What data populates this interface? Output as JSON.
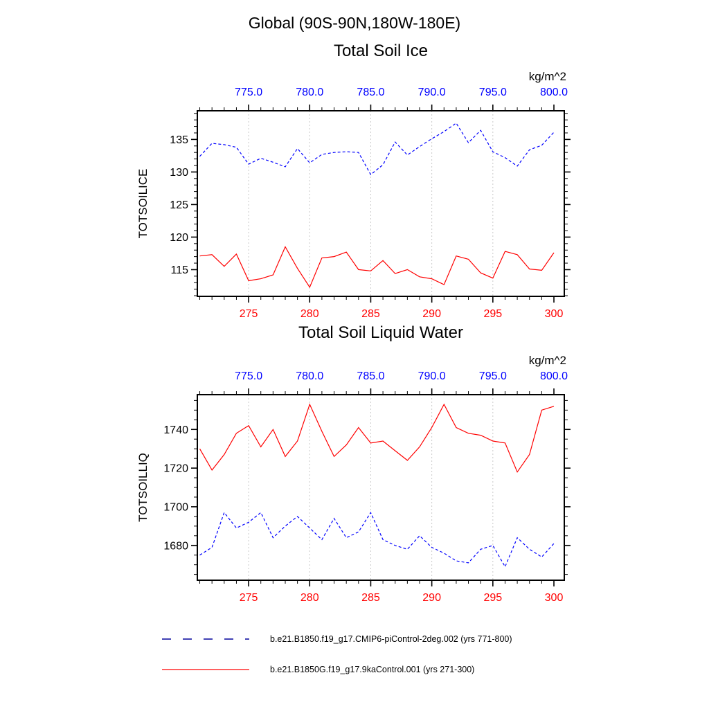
{
  "page": {
    "main_title": "Global (90S-90N,180W-180E)"
  },
  "chart_data": [
    {
      "type": "line",
      "title": "Total Soil Ice",
      "ylabel": "TOTSOILICE",
      "units": "kg/m^2",
      "xlim": [
        270.8,
        300.85
      ],
      "x_ticks": [
        275,
        280,
        285,
        290,
        295,
        300
      ],
      "x_top_labels": [
        "775.0",
        "780.0",
        "785.0",
        "790.0",
        "795.0",
        "800.0"
      ],
      "x_bottom_color": "#ff0000",
      "x_top_color": "#0000ff",
      "grid_x": [
        275,
        280,
        285,
        290,
        295
      ],
      "ylim": [
        110.9,
        139.4
      ],
      "y_ticks": [
        115,
        120,
        125,
        130,
        135
      ],
      "y_minor_step": 1,
      "x": [
        271,
        272,
        273,
        274,
        275,
        276,
        277,
        278,
        279,
        280,
        281,
        282,
        283,
        284,
        285,
        286,
        287,
        288,
        289,
        290,
        291,
        292,
        293,
        294,
        295,
        296,
        297,
        298,
        299,
        300
      ],
      "series": [
        {
          "name": "b.e21.B1850.f19_g17.CMIP6-piControl-2deg.002 (yrs 771-800)",
          "color": "#0000ff",
          "style": "dashed",
          "values": [
            132.4,
            134.4,
            134.2,
            133.8,
            131.2,
            132.1,
            131.5,
            130.8,
            133.6,
            131.4,
            132.7,
            133.0,
            133.1,
            133.0,
            129.6,
            131.1,
            134.6,
            132.6,
            133.9,
            135.1,
            136.2,
            137.5,
            134.5,
            136.4,
            133.1,
            132.2,
            130.9,
            133.4,
            134.1,
            136.1
          ]
        },
        {
          "name": "b.e21.B1850G.f19_g17.9kaControl.001 (yrs 271-300)",
          "color": "#ff0000",
          "style": "solid",
          "values": [
            117.1,
            117.3,
            115.5,
            117.4,
            113.3,
            113.6,
            114.2,
            118.5,
            115.2,
            112.3,
            116.8,
            117.0,
            117.7,
            115.0,
            114.8,
            116.4,
            114.4,
            115.0,
            113.9,
            113.6,
            112.7,
            117.1,
            116.6,
            114.5,
            113.7,
            117.8,
            117.3,
            115.1,
            114.9,
            117.6
          ]
        }
      ]
    },
    {
      "type": "line",
      "title": "Total Soil Liquid Water",
      "ylabel": "TOTSOILLIQ",
      "units": "kg/m^2",
      "xlim": [
        270.8,
        300.85
      ],
      "x_ticks": [
        275,
        280,
        285,
        290,
        295,
        300
      ],
      "x_top_labels": [
        "775.0",
        "780.0",
        "785.0",
        "790.0",
        "795.0",
        "800.0"
      ],
      "x_bottom_color": "#ff0000",
      "x_top_color": "#0000ff",
      "grid_x": [
        275,
        280,
        285,
        290,
        295
      ],
      "ylim": [
        1662,
        1758
      ],
      "y_ticks": [
        1680,
        1700,
        1720,
        1740
      ],
      "y_minor_step": 5,
      "x": [
        271,
        272,
        273,
        274,
        275,
        276,
        277,
        278,
        279,
        280,
        281,
        282,
        283,
        284,
        285,
        286,
        287,
        288,
        289,
        290,
        291,
        292,
        293,
        294,
        295,
        296,
        297,
        298,
        299,
        300
      ],
      "series": [
        {
          "name": "b.e21.B1850.f19_g17.CMIP6-piControl-2deg.002 (yrs 771-800)",
          "color": "#0000ff",
          "style": "dashed",
          "values": [
            1675,
            1679,
            1697,
            1689,
            1692,
            1697,
            1684,
            1690,
            1695,
            1689,
            1683,
            1694,
            1684,
            1687,
            1697,
            1683,
            1680,
            1678,
            1685,
            1679,
            1676,
            1672,
            1671,
            1678,
            1680,
            1669,
            1684,
            1678,
            1674,
            1681
          ]
        },
        {
          "name": "b.e21.B1850G.f19_g17.9kaControl.001 (yrs 271-300)",
          "color": "#ff0000",
          "style": "solid",
          "values": [
            1730,
            1719,
            1727,
            1738,
            1742,
            1731,
            1740,
            1726,
            1734,
            1753,
            1739,
            1726,
            1732,
            1741,
            1733,
            1734,
            1729,
            1724,
            1731,
            1741,
            1753,
            1741,
            1738,
            1737,
            1734,
            1733,
            1718,
            1727,
            1750,
            1752
          ]
        }
      ]
    }
  ],
  "legend": {
    "entries": [
      {
        "label": "b.e21.B1850.f19_g17.CMIP6-piControl-2deg.002 (yrs 771-800)",
        "color": "#00009b",
        "style": "dashed"
      },
      {
        "label": "b.e21.B1850G.f19_g17.9kaControl.001 (yrs 271-300)",
        "color": "#ff0000",
        "style": "solid"
      }
    ]
  }
}
